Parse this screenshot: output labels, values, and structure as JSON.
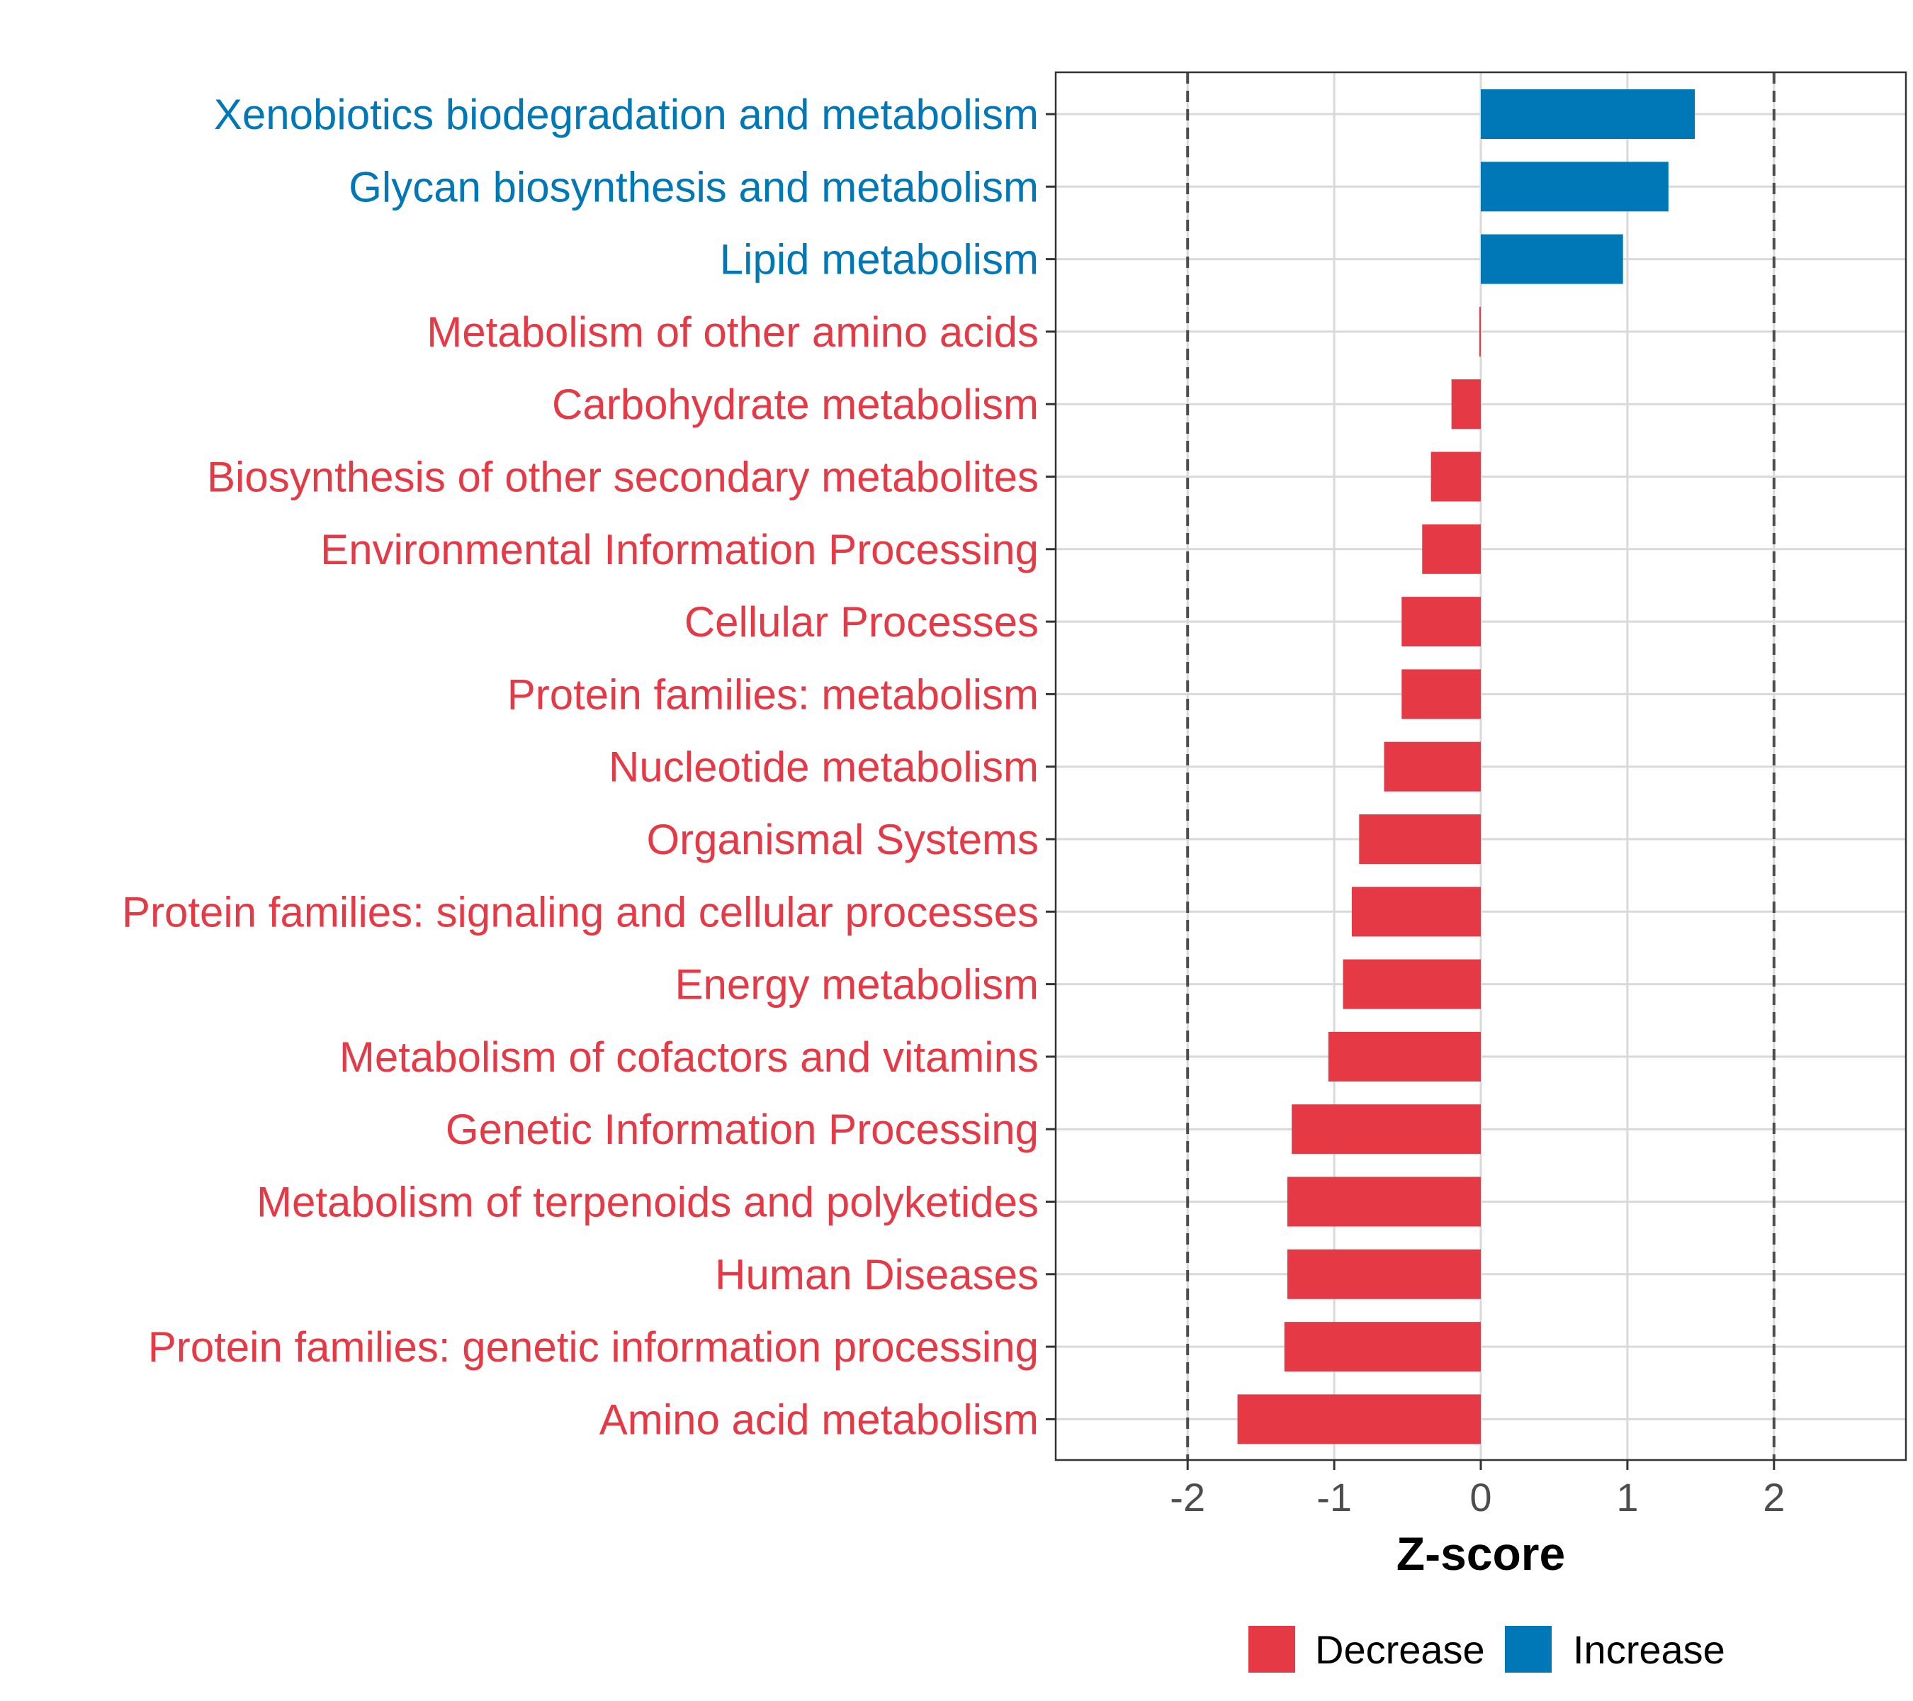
{
  "chart_data": {
    "type": "bar",
    "orientation": "horizontal",
    "title": "",
    "xlabel": "Z-score",
    "ylabel": "",
    "xlim": [
      -2.9,
      2.9
    ],
    "xticks": [
      -2,
      -1,
      0,
      1,
      2
    ],
    "xtick_labels": [
      "-2",
      "-1",
      "0",
      "1",
      "2"
    ],
    "reference_lines": [
      -2,
      2
    ],
    "grid": true,
    "colors": {
      "Decrease": "#e63946",
      "Increase": "#0077b6"
    },
    "categories": [
      "Xenobiotics biodegradation and metabolism",
      "Glycan biosynthesis and metabolism",
      "Lipid metabolism",
      "Metabolism of other amino acids",
      "Carbohydrate metabolism",
      "Biosynthesis of other secondary metabolites",
      "Environmental Information Processing",
      "Cellular Processes",
      "Protein families: metabolism",
      "Nucleotide metabolism",
      "Organismal Systems",
      "Protein families: signaling and cellular processes",
      "Energy metabolism",
      "Metabolism of cofactors and vitamins",
      "Genetic Information Processing",
      "Metabolism of terpenoids and polyketides",
      "Human Diseases",
      "Protein families: genetic information processing",
      "Amino acid metabolism"
    ],
    "values": [
      1.46,
      1.28,
      0.97,
      -0.01,
      -0.2,
      -0.34,
      -0.4,
      -0.54,
      -0.54,
      -0.66,
      -0.83,
      -0.88,
      -0.94,
      -1.04,
      -1.29,
      -1.32,
      -1.32,
      -1.34,
      -1.66
    ],
    "groups": [
      "Increase",
      "Increase",
      "Increase",
      "Decrease",
      "Decrease",
      "Decrease",
      "Decrease",
      "Decrease",
      "Decrease",
      "Decrease",
      "Decrease",
      "Decrease",
      "Decrease",
      "Decrease",
      "Decrease",
      "Decrease",
      "Decrease",
      "Decrease",
      "Decrease"
    ],
    "legend": {
      "position": "bottom",
      "entries": [
        {
          "label": "Decrease",
          "color": "#e63946"
        },
        {
          "label": "Increase",
          "color": "#0077b6"
        }
      ]
    }
  }
}
